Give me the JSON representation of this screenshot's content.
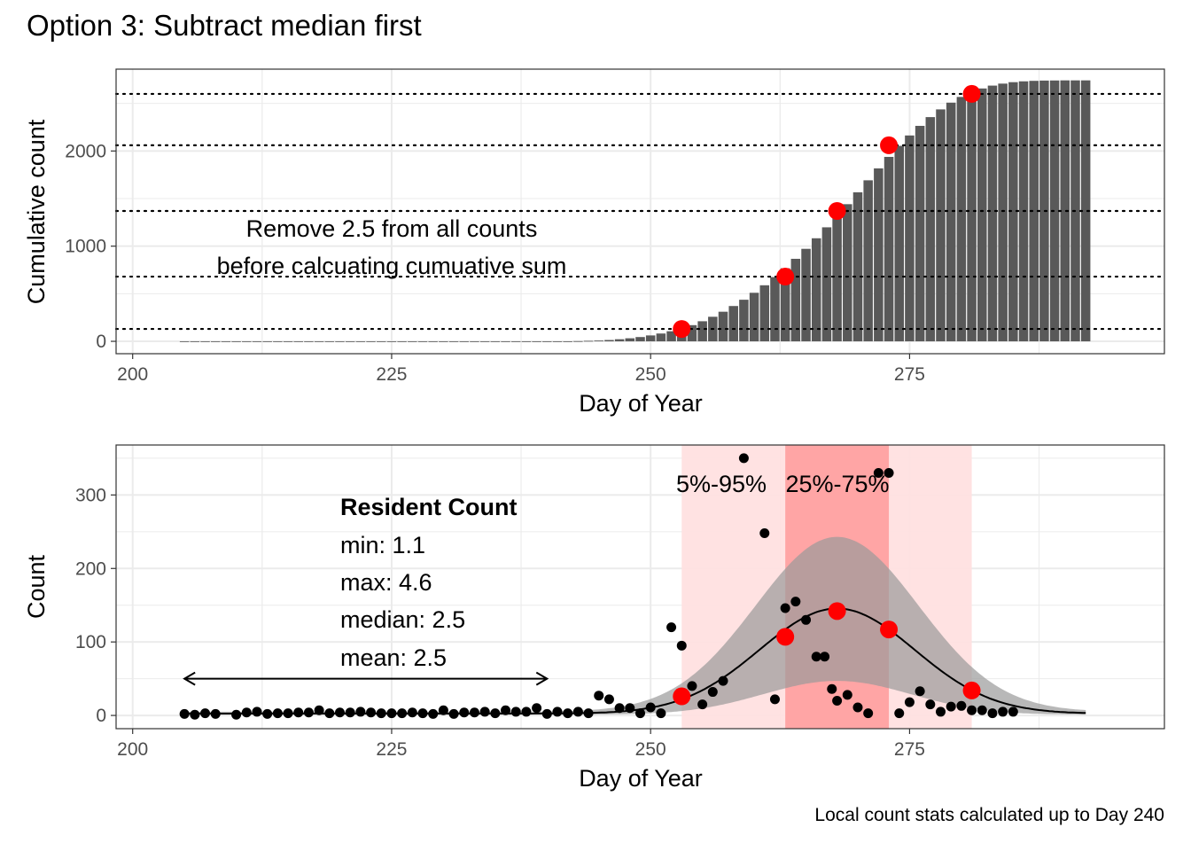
{
  "title": "Option 3: Subtract median first",
  "caption": "Local count stats calculated up to Day 240",
  "colors": {
    "bar": "#595959",
    "marker": "#ff0000",
    "band_outer": "#ffe0e0",
    "band_inner": "#ff9e9e",
    "ribbon": "#9a9a9a",
    "grid": "#ebebeb",
    "point": "#000000"
  },
  "chart_data": [
    {
      "id": "top",
      "type": "bar",
      "xlabel": "Day of Year",
      "ylabel": "Cumulative count",
      "xlim": [
        198.4,
        299.6
      ],
      "ylim": [
        -130,
        2860
      ],
      "xticks": [
        200,
        225,
        250,
        275
      ],
      "yticks": [
        0,
        1000,
        2000
      ],
      "grid": true,
      "x": [
        205,
        206,
        207,
        208,
        209,
        210,
        211,
        212,
        213,
        214,
        215,
        216,
        217,
        218,
        219,
        220,
        221,
        222,
        223,
        224,
        225,
        226,
        227,
        228,
        229,
        230,
        231,
        232,
        233,
        234,
        235,
        236,
        237,
        238,
        239,
        240,
        241,
        242,
        243,
        244,
        245,
        246,
        247,
        248,
        249,
        250,
        251,
        252,
        253,
        254,
        255,
        256,
        257,
        258,
        259,
        260,
        261,
        262,
        263,
        264,
        265,
        266,
        267,
        268,
        269,
        270,
        271,
        272,
        273,
        274,
        275,
        276,
        277,
        278,
        279,
        280,
        281,
        282,
        283,
        284,
        285,
        286,
        287,
        288,
        289,
        290,
        291,
        292
      ],
      "values": [
        -1,
        -2,
        -2,
        -2,
        -3,
        -3,
        -3,
        -3,
        -3,
        -3,
        -3,
        -3,
        -3,
        -3,
        -3,
        -3,
        -3,
        -3,
        -3,
        -3,
        -3,
        -3,
        -3,
        -3,
        -3,
        -3,
        -3,
        -3,
        -3,
        -3,
        -3,
        -3,
        -3,
        -3,
        -3,
        -3,
        -3,
        -3,
        2,
        5,
        8,
        14,
        22,
        32,
        45,
        62,
        82,
        106,
        135,
        170,
        211,
        258,
        311,
        371,
        437,
        510,
        589,
        675,
        768,
        867,
        972,
        1083,
        1198,
        1318,
        1441,
        1566,
        1692,
        1817,
        1938,
        2054,
        2163,
        2264,
        2356,
        2437,
        2508,
        2568,
        2618,
        2657,
        2687,
        2708,
        2723,
        2732,
        2737,
        2740,
        2741,
        2742,
        2742,
        2742
      ],
      "hlines": [
        130,
        680,
        1370,
        2060,
        2600
      ],
      "markers": [
        {
          "x": 253,
          "y": 130
        },
        {
          "x": 263,
          "y": 680
        },
        {
          "x": 268,
          "y": 1370
        },
        {
          "x": 273,
          "y": 2060
        },
        {
          "x": 281,
          "y": 2600
        }
      ],
      "annotation": [
        "Remove 2.5 from all counts",
        "before calcuating cumuative sum"
      ]
    },
    {
      "id": "bottom",
      "type": "scatter",
      "xlabel": "Day of Year",
      "ylabel": "Count",
      "xlim": [
        198.4,
        299.6
      ],
      "ylim": [
        -18,
        368
      ],
      "xticks": [
        200,
        225,
        250,
        275
      ],
      "yticks": [
        0,
        100,
        200,
        300
      ],
      "grid": true,
      "bands": [
        {
          "label": "5%-95%",
          "x0": 253,
          "x1": 281,
          "kind": "outer"
        },
        {
          "label": "25%-75%",
          "x0": 263,
          "x1": 273,
          "kind": "inner"
        }
      ],
      "curve": {
        "peak": 143,
        "center": 268,
        "sd": 7.5,
        "lower_peak": 46,
        "upper_peak": 238
      },
      "points": [
        [
          205,
          2
        ],
        [
          206,
          1
        ],
        [
          207,
          3
        ],
        [
          208,
          2
        ],
        [
          210,
          1
        ],
        [
          211,
          4
        ],
        [
          212,
          5
        ],
        [
          213,
          2
        ],
        [
          214,
          3
        ],
        [
          215,
          3
        ],
        [
          216,
          4
        ],
        [
          217,
          4
        ],
        [
          218,
          7
        ],
        [
          219,
          3
        ],
        [
          220,
          4
        ],
        [
          221,
          4
        ],
        [
          222,
          5
        ],
        [
          223,
          4
        ],
        [
          224,
          3
        ],
        [
          225,
          3
        ],
        [
          226,
          3
        ],
        [
          227,
          4
        ],
        [
          228,
          3
        ],
        [
          229,
          2
        ],
        [
          230,
          7
        ],
        [
          231,
          2
        ],
        [
          232,
          4
        ],
        [
          233,
          4
        ],
        [
          234,
          5
        ],
        [
          235,
          3
        ],
        [
          236,
          7
        ],
        [
          237,
          5
        ],
        [
          238,
          5
        ],
        [
          239,
          10
        ],
        [
          240,
          2
        ],
        [
          241,
          5
        ],
        [
          242,
          3
        ],
        [
          243,
          5
        ],
        [
          244,
          3
        ],
        [
          245,
          27
        ],
        [
          246,
          22
        ],
        [
          247,
          10
        ],
        [
          248,
          10
        ],
        [
          249,
          3
        ],
        [
          250,
          11
        ],
        [
          251,
          3
        ],
        [
          252,
          120
        ],
        [
          253,
          95
        ],
        [
          254,
          40
        ],
        [
          255,
          15
        ],
        [
          256,
          32
        ],
        [
          257,
          47
        ],
        [
          259,
          350
        ],
        [
          261,
          248
        ],
        [
          262,
          22
        ],
        [
          263,
          146
        ],
        [
          264,
          155
        ],
        [
          265,
          130
        ],
        [
          266,
          80
        ],
        [
          266.8,
          80
        ],
        [
          267.5,
          36
        ],
        [
          268,
          20
        ],
        [
          269,
          28
        ],
        [
          270,
          11
        ],
        [
          271,
          3
        ],
        [
          272,
          330
        ],
        [
          273,
          330
        ],
        [
          274,
          3
        ],
        [
          275,
          18
        ],
        [
          276,
          33
        ],
        [
          277,
          15
        ],
        [
          278,
          5
        ],
        [
          279,
          12
        ],
        [
          280,
          13
        ],
        [
          281,
          7
        ],
        [
          282,
          7
        ],
        [
          283,
          3
        ],
        [
          284,
          5
        ],
        [
          285,
          5
        ]
      ],
      "markers": [
        {
          "x": 253,
          "y": 26
        },
        {
          "x": 263,
          "y": 107
        },
        {
          "x": 268,
          "y": 142
        },
        {
          "x": 273,
          "y": 117
        },
        {
          "x": 281,
          "y": 34
        }
      ],
      "arrow": {
        "x0": 205,
        "x1": 240,
        "y": 50
      },
      "legend_box": {
        "heading": "Resident Count",
        "lines": [
          "min: 1.1",
          "max: 4.6",
          "median: 2.5",
          "mean: 2.5"
        ]
      }
    }
  ]
}
